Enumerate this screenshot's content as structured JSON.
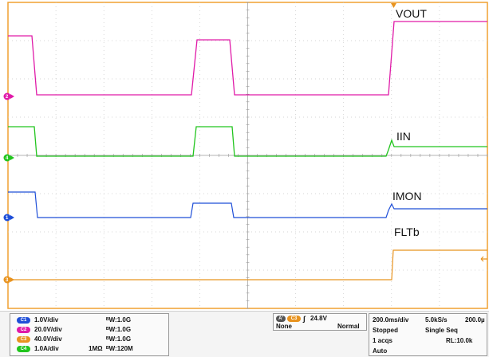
{
  "colors": {
    "ch1": "#1f4fd8",
    "ch2": "#e01aa8",
    "ch3": "#e8931f",
    "ch4": "#22c51e",
    "border": "#f0a030"
  },
  "traces": {
    "vout": {
      "label": "VOUT",
      "marker": "2",
      "color": "#e01aa8"
    },
    "iin": {
      "label": "IIN",
      "marker": "4",
      "color": "#22c51e"
    },
    "imon": {
      "label": "IMON",
      "marker": "1",
      "color": "#1f4fd8"
    },
    "fltb": {
      "label": "FLTb",
      "marker": "3",
      "color": "#e8931f"
    }
  },
  "channels": [
    {
      "id": "C1",
      "scale": "1.0V/div",
      "coupling": "",
      "bw": "ᴮW:1.0G",
      "color": "#1f4fd8"
    },
    {
      "id": "C2",
      "scale": "20.0V/div",
      "coupling": "",
      "bw": "ᴮW:1.0G",
      "color": "#e01aa8"
    },
    {
      "id": "C3",
      "scale": "40.0V/div",
      "coupling": "",
      "bw": "ᴮW:1.0G",
      "color": "#e8931f"
    },
    {
      "id": "C4",
      "scale": "1.0A/div",
      "coupling": "1MΩ",
      "bw": "ᴮW:120M",
      "color": "#22c51e"
    }
  ],
  "trigger": {
    "source_tag": "A'",
    "channel": "C3",
    "slope": "∫",
    "level": "24.8V",
    "type": "None",
    "mode": "Normal"
  },
  "acquisition": {
    "timebase": "200.0ms/div",
    "sample_rate": "5.0kS/s",
    "position": "200.0µ",
    "state": "Stopped",
    "seq": "Single Seq",
    "acqs": "1 acqs",
    "record_length": "RL:10.0k",
    "trigger_mode": "Auto"
  }
}
